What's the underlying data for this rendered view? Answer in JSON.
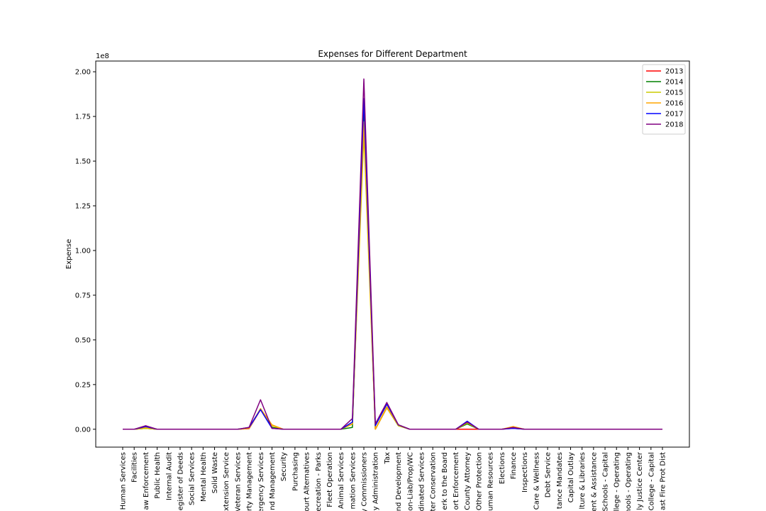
{
  "chart_data": {
    "type": "line",
    "title": "Expenses for Different Department",
    "xlabel": "",
    "ylabel": "Expense",
    "y_multiplier_label": "1e8",
    "ylim": [
      -10000000,
      206000000
    ],
    "yticks": [
      0,
      25000000,
      50000000,
      75000000,
      100000000,
      125000000,
      150000000,
      175000000,
      200000000
    ],
    "ytick_labels": [
      "0.00",
      "0.25",
      "0.50",
      "0.75",
      "1.00",
      "1.25",
      "1.50",
      "1.75",
      "2.00"
    ],
    "legend_position": "top-right",
    "grid": false,
    "categories": [
      "Human Services",
      "Facilities",
      "aw Enforcement",
      "Public Health",
      "Internal Audit",
      "egister of Deeds",
      "Social Services",
      "Mental Health",
      "Solid Waste",
      "xtension Service",
      "Veteran Services",
      "rty Management",
      "ergency Services",
      "nd Management",
      "Security",
      "Purchasing",
      "ourt Alternatives",
      "ecreation - Parks",
      "Fleet Operation",
      "Animal Services",
      "mation Services",
      "y Commissioners",
      "y Administration",
      "Tax",
      "nd Development",
      "on-Liab/Prop/WC",
      "dinated Services",
      "ter Conservation",
      "erk to the Board",
      "ort Enforcement",
      "County Attorney",
      "Other Protection",
      "uman Resources",
      "Elections",
      "Finance",
      "Inspections",
      "Care & Wellness",
      "Debt Service",
      "tance Mandates",
      "Capital Outlay",
      "lture & Libraries",
      "ent & Assistance",
      "Schools - Capital",
      "llege - Operating",
      "hools - Operating",
      "ly Justice Center",
      "College - Capital",
      "ast Fire Prot Dist"
    ],
    "series": [
      {
        "name": "2013",
        "color": "#ff0000",
        "values": [
          0,
          0,
          500000,
          0,
          0,
          0,
          0,
          0,
          0,
          0,
          0,
          300000,
          11000000,
          1000000,
          0,
          0,
          0,
          0,
          0,
          0,
          3000000,
          175000000,
          0,
          12000000,
          2000000,
          0,
          0,
          0,
          0,
          0,
          0,
          0,
          0,
          0,
          500000,
          0,
          0,
          0,
          0,
          0,
          0,
          0,
          0,
          0,
          0,
          0,
          0,
          0
        ]
      },
      {
        "name": "2014",
        "color": "#008000",
        "values": [
          0,
          0,
          500000,
          0,
          0,
          0,
          0,
          0,
          0,
          0,
          0,
          500000,
          11500000,
          1000000,
          0,
          0,
          0,
          0,
          0,
          0,
          1000000,
          177000000,
          0,
          12500000,
          2000000,
          0,
          0,
          0,
          0,
          0,
          3000000,
          0,
          0,
          0,
          1000000,
          0,
          0,
          0,
          0,
          0,
          0,
          0,
          0,
          0,
          0,
          0,
          0,
          0
        ]
      },
      {
        "name": "2015",
        "color": "#cccc00",
        "values": [
          0,
          0,
          500000,
          0,
          0,
          0,
          0,
          0,
          0,
          0,
          0,
          500000,
          11500000,
          2000000,
          0,
          0,
          0,
          0,
          0,
          0,
          3000000,
          165000000,
          0,
          12000000,
          2000000,
          0,
          0,
          0,
          0,
          0,
          3500000,
          0,
          0,
          0,
          1000000,
          0,
          0,
          0,
          0,
          0,
          0,
          0,
          0,
          0,
          0,
          0,
          0,
          0
        ]
      },
      {
        "name": "2016",
        "color": "#ffa500",
        "values": [
          0,
          0,
          1000000,
          0,
          0,
          0,
          0,
          0,
          0,
          0,
          0,
          500000,
          11500000,
          2500000,
          0,
          0,
          0,
          0,
          0,
          0,
          3000000,
          172000000,
          0,
          12500000,
          2500000,
          0,
          0,
          0,
          0,
          0,
          4000000,
          0,
          0,
          0,
          1500000,
          0,
          0,
          0,
          0,
          0,
          0,
          0,
          0,
          0,
          0,
          0,
          0,
          0
        ]
      },
      {
        "name": "2017",
        "color": "#0000ff",
        "values": [
          0,
          0,
          1500000,
          0,
          0,
          0,
          0,
          0,
          0,
          0,
          0,
          1000000,
          11000000,
          500000,
          0,
          0,
          0,
          0,
          0,
          0,
          4000000,
          185000000,
          2000000,
          14000000,
          2500000,
          0,
          0,
          0,
          0,
          0,
          4500000,
          0,
          0,
          0,
          500000,
          0,
          0,
          0,
          0,
          0,
          0,
          0,
          0,
          0,
          0,
          0,
          0,
          0
        ]
      },
      {
        "name": "2018",
        "color": "#800080",
        "values": [
          0,
          0,
          2000000,
          0,
          0,
          0,
          0,
          0,
          0,
          0,
          0,
          1000000,
          16500000,
          500000,
          0,
          0,
          0,
          0,
          0,
          0,
          6000000,
          196000000,
          3000000,
          15000000,
          2500000,
          0,
          0,
          0,
          0,
          0,
          4000000,
          0,
          0,
          0,
          1000000,
          0,
          0,
          0,
          0,
          0,
          0,
          0,
          0,
          0,
          0,
          0,
          0,
          0
        ]
      }
    ]
  }
}
